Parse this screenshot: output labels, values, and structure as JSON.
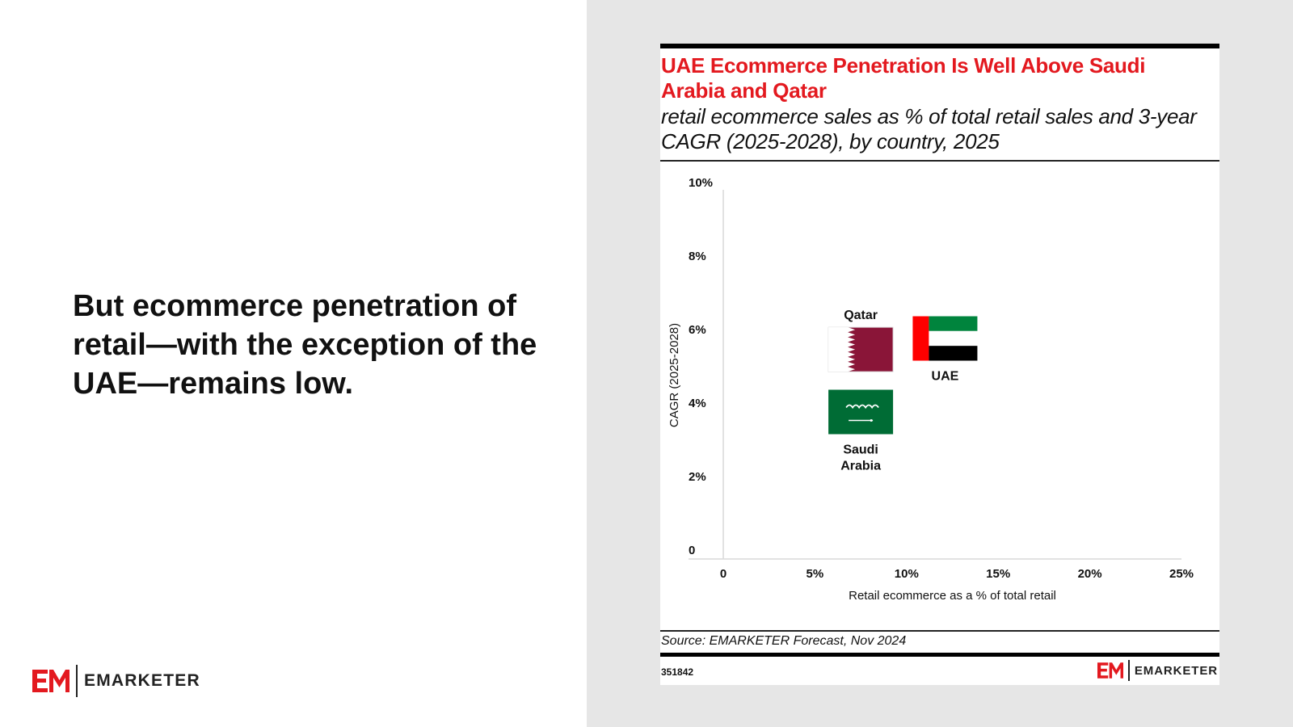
{
  "slide": {
    "headline": "But ecommerce penetration of retail—with the exception of the UAE—remains low.",
    "brand_name": "EMARKETER",
    "brand_color": "#e3191f"
  },
  "card": {
    "title": "UAE Ecommerce Penetration Is Well Above Saudi Arabia and Qatar",
    "subtitle": "retail ecommerce sales as % of total retail sales and 3-year CAGR (2025-2028), by country, 2025",
    "source": "Source: EMARKETER Forecast, Nov 2024",
    "chart_id": "351842",
    "brand_name": "EMARKETER"
  },
  "chart_data": {
    "type": "scatter",
    "title": "UAE Ecommerce Penetration Is Well Above Saudi Arabia and Qatar",
    "subtitle": "retail ecommerce sales as % of total retail sales and 3-year CAGR (2025-2028), by country, 2025",
    "xlabel": "Retail ecommerce as a % of total retail",
    "ylabel": "CAGR (2025-2028)",
    "xlim": [
      0,
      25
    ],
    "ylim": [
      0,
      10
    ],
    "x_ticks": [
      0,
      5,
      10,
      15,
      20,
      25
    ],
    "x_tick_labels": [
      "0",
      "5%",
      "10%",
      "15%",
      "20%",
      "25%"
    ],
    "y_ticks": [
      0,
      2,
      4,
      6,
      8,
      10
    ],
    "y_tick_labels": [
      "0",
      "2%",
      "4%",
      "6%",
      "8%",
      "10%"
    ],
    "grid": false,
    "marker": "country flag",
    "points": [
      {
        "label": "Qatar",
        "x": 7.5,
        "y": 5.7,
        "flag": "qatar-flag"
      },
      {
        "label": "UAE",
        "x": 12.1,
        "y": 6.0,
        "flag": "uae-flag"
      },
      {
        "label": "Saudi Arabia",
        "label_lines": [
          "Saudi",
          "Arabia"
        ],
        "x": 7.5,
        "y": 4.0,
        "flag": "saudi-arabia-flag"
      }
    ],
    "colors": {
      "qatar_maroon": "#8a1538",
      "uae_red": "#ff0000",
      "uae_green": "#00843d",
      "saudi_green": "#006c35",
      "axis": "#d9d9d9"
    }
  }
}
